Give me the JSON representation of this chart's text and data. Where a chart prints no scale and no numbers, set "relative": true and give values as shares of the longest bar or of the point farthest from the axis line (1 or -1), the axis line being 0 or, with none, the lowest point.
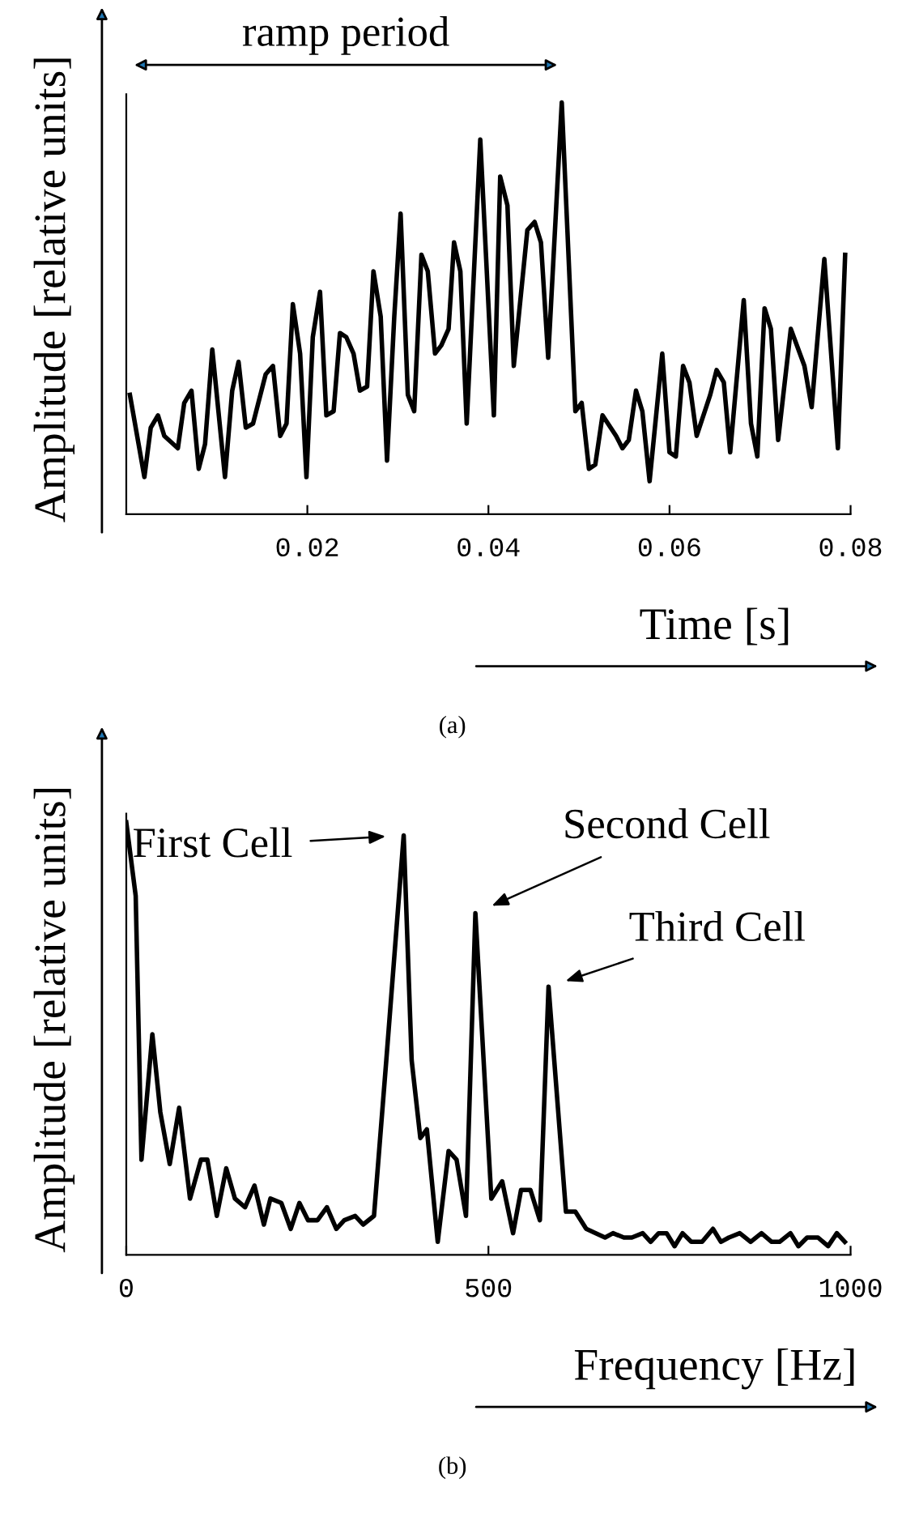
{
  "chart_data": [
    {
      "type": "line",
      "xlabel": "Time [s]",
      "ylabel": "Amplitude [relative units]",
      "relative": true,
      "xlim": [
        0,
        0.08
      ],
      "xticks": [
        {
          "value": 0.02,
          "label": "0.02"
        },
        {
          "value": 0.04,
          "label": "0.04"
        },
        {
          "value": 0.06,
          "label": "0.06"
        },
        {
          "value": 0.08,
          "label": "0.08"
        }
      ],
      "grid": false,
      "annotations": [
        "ramp period",
        "(a)"
      ],
      "x": [
        0.0004,
        0.002,
        0.0027,
        0.0035,
        0.0042,
        0.0057,
        0.0064,
        0.0072,
        0.008,
        0.0087,
        0.0095,
        0.0109,
        0.0117,
        0.0124,
        0.0132,
        0.014,
        0.0154,
        0.0162,
        0.017,
        0.0177,
        0.0184,
        0.0192,
        0.0199,
        0.0206,
        0.0214,
        0.0221,
        0.0229,
        0.0236,
        0.0243,
        0.0251,
        0.0258,
        0.0266,
        0.0273,
        0.0281,
        0.0288,
        0.0296,
        0.0303,
        0.0311,
        0.0318,
        0.0326,
        0.0333,
        0.0341,
        0.0348,
        0.0356,
        0.0362,
        0.0369,
        0.0376,
        0.0391,
        0.0406,
        0.0413,
        0.0421,
        0.0428,
        0.0443,
        0.0451,
        0.0458,
        0.0466,
        0.0481,
        0.0496,
        0.0503,
        0.0511,
        0.0518,
        0.0526,
        0.0541,
        0.0548,
        0.0555,
        0.0563,
        0.057,
        0.0578,
        0.0592,
        0.06,
        0.0607,
        0.0615,
        0.0622,
        0.063,
        0.0645,
        0.0652,
        0.066,
        0.0667,
        0.0682,
        0.069,
        0.0697,
        0.0705,
        0.0712,
        0.072,
        0.0734,
        0.0749,
        0.0757,
        0.0771,
        0.0786,
        0.0794
      ],
      "series": [
        {
          "color": "#000000",
          "values": [
            0.29,
            0.09,
            0.21,
            0.24,
            0.19,
            0.16,
            0.27,
            0.3,
            0.11,
            0.17,
            0.4,
            0.09,
            0.3,
            0.37,
            0.21,
            0.22,
            0.34,
            0.36,
            0.19,
            0.22,
            0.51,
            0.39,
            0.09,
            0.43,
            0.54,
            0.24,
            0.25,
            0.44,
            0.43,
            0.39,
            0.3,
            0.31,
            0.59,
            0.48,
            0.13,
            0.48,
            0.73,
            0.29,
            0.25,
            0.63,
            0.59,
            0.39,
            0.41,
            0.45,
            0.66,
            0.59,
            0.22,
            0.91,
            0.24,
            0.82,
            0.75,
            0.36,
            0.69,
            0.71,
            0.66,
            0.38,
            1.0,
            0.25,
            0.27,
            0.11,
            0.12,
            0.24,
            0.19,
            0.16,
            0.18,
            0.3,
            0.25,
            0.08,
            0.39,
            0.15,
            0.14,
            0.36,
            0.32,
            0.19,
            0.29,
            0.35,
            0.32,
            0.15,
            0.52,
            0.22,
            0.14,
            0.5,
            0.45,
            0.18,
            0.45,
            0.36,
            0.26,
            0.62,
            0.16,
            0.63
          ]
        }
      ]
    },
    {
      "type": "line",
      "xlabel": "Frequency [Hz]",
      "ylabel": "Amplitude [relative units]",
      "relative": true,
      "xlim": [
        0,
        1000
      ],
      "xticks": [
        0,
        500,
        1000
      ],
      "grid": false,
      "annotations": [
        {
          "text": "First Cell",
          "x": 383,
          "y": 0.97
        },
        {
          "text": "Second Cell",
          "x": 482,
          "y": 0.79
        },
        {
          "text": "Third Cell",
          "x": 583,
          "y": 0.62
        },
        "(b)"
      ],
      "x": [
        0,
        13,
        21,
        36,
        47,
        60,
        73,
        88,
        103,
        112,
        125,
        138,
        150,
        164,
        177,
        190,
        199,
        214,
        227,
        239,
        251,
        264,
        277,
        290,
        301,
        316,
        327,
        342,
        359,
        371,
        383,
        394,
        406,
        415,
        430,
        445,
        456,
        469,
        482,
        504,
        519,
        534,
        545,
        558,
        571,
        583,
        607,
        620,
        635,
        661,
        672,
        687,
        698,
        713,
        724,
        735,
        746,
        757,
        768,
        780,
        795,
        810,
        821,
        832,
        847,
        862,
        877,
        891,
        902,
        917,
        928,
        940,
        955,
        969,
        981,
        992
      ],
      "series": [
        {
          "color": "#000000",
          "values": [
            1.0,
            0.83,
            0.22,
            0.51,
            0.33,
            0.21,
            0.34,
            0.13,
            0.22,
            0.22,
            0.09,
            0.2,
            0.13,
            0.11,
            0.16,
            0.07,
            0.13,
            0.12,
            0.06,
            0.12,
            0.08,
            0.08,
            0.11,
            0.06,
            0.08,
            0.09,
            0.07,
            0.09,
            0.45,
            0.71,
            0.97,
            0.45,
            0.27,
            0.29,
            0.03,
            0.24,
            0.22,
            0.09,
            0.79,
            0.13,
            0.17,
            0.05,
            0.15,
            0.15,
            0.08,
            0.62,
            0.1,
            0.1,
            0.06,
            0.04,
            0.05,
            0.04,
            0.04,
            0.05,
            0.03,
            0.05,
            0.05,
            0.02,
            0.05,
            0.03,
            0.03,
            0.06,
            0.03,
            0.04,
            0.05,
            0.03,
            0.05,
            0.03,
            0.03,
            0.05,
            0.02,
            0.04,
            0.04,
            0.02,
            0.05,
            0.03
          ]
        }
      ]
    }
  ]
}
